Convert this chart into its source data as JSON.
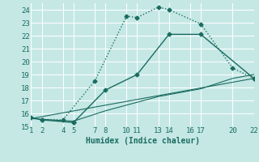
{
  "xlabel": "Humidex (Indice chaleur)",
  "background_color": "#c5e8e5",
  "grid_color": "#ffffff",
  "line_color": "#1a6b60",
  "xlim": [
    1,
    22
  ],
  "ylim": [
    15,
    24.5
  ],
  "xticks": [
    1,
    2,
    4,
    5,
    7,
    8,
    10,
    11,
    13,
    14,
    16,
    17,
    20,
    22
  ],
  "yticks": [
    15,
    16,
    17,
    18,
    19,
    20,
    21,
    22,
    23,
    24
  ],
  "line1_x": [
    2,
    4,
    7,
    10,
    11,
    13,
    14,
    17,
    20,
    22
  ],
  "line1_y": [
    15.5,
    15.5,
    18.5,
    23.5,
    23.4,
    24.2,
    24.0,
    22.9,
    19.5,
    18.7
  ],
  "line2_x": [
    1,
    2,
    5,
    5,
    8,
    11,
    14,
    17,
    22
  ],
  "line2_y": [
    15.7,
    15.5,
    15.3,
    15.3,
    17.8,
    19.0,
    22.1,
    22.1,
    18.7
  ],
  "line3_x": [
    1,
    5,
    8,
    13,
    17,
    20,
    22
  ],
  "line3_y": [
    15.6,
    15.4,
    16.2,
    17.3,
    17.9,
    18.7,
    19.0
  ],
  "line4_x": [
    1,
    22
  ],
  "line4_y": [
    15.6,
    18.7
  ],
  "marker_style": "D",
  "marker_size": 2.5,
  "font_size_label": 7,
  "font_size_ticks": 6.5
}
